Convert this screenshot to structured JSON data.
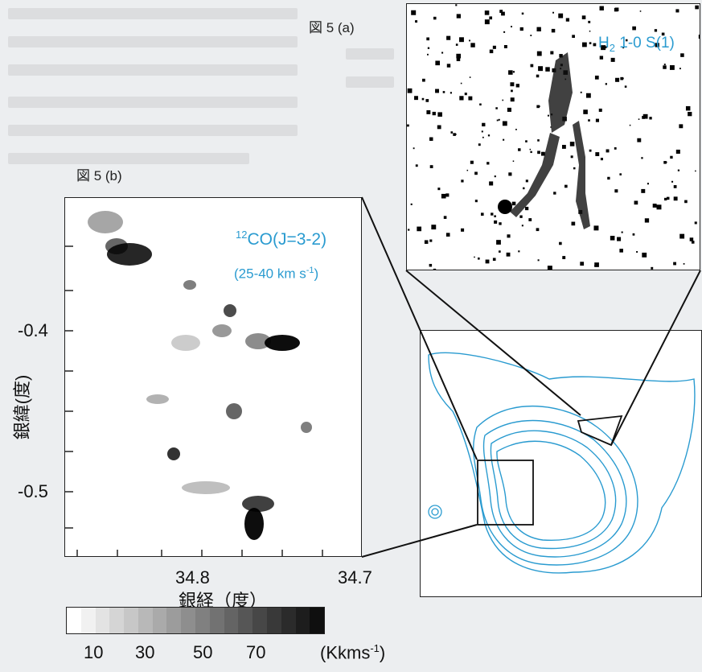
{
  "figure_a": {
    "label": "図 5 (a)",
    "legend_h2": "H",
    "legend_sub": "2",
    "legend_rest": " 1-0 S(1)"
  },
  "figure_b": {
    "label": "図 5 (b)",
    "co_sup": "12",
    "co_text": "CO(J=3-2)",
    "co_range": "(25-40 km s",
    "co_range_sup": "-1",
    "co_range_end": ")",
    "y_ticks": [
      "-0.4",
      "-0.5"
    ],
    "x_ticks": [
      "34.8",
      "34.7"
    ],
    "y_label": "銀緯(度)",
    "x_label": "銀経（度）"
  },
  "colorbar": {
    "ticks": [
      "10",
      "30",
      "50",
      "70"
    ],
    "unit": "(Kkms",
    "unit_sup": "-1",
    "unit_end": ")"
  },
  "colors": {
    "contour": "#2a9bd0",
    "frame": "#222222",
    "label": "#2a9bd0"
  }
}
